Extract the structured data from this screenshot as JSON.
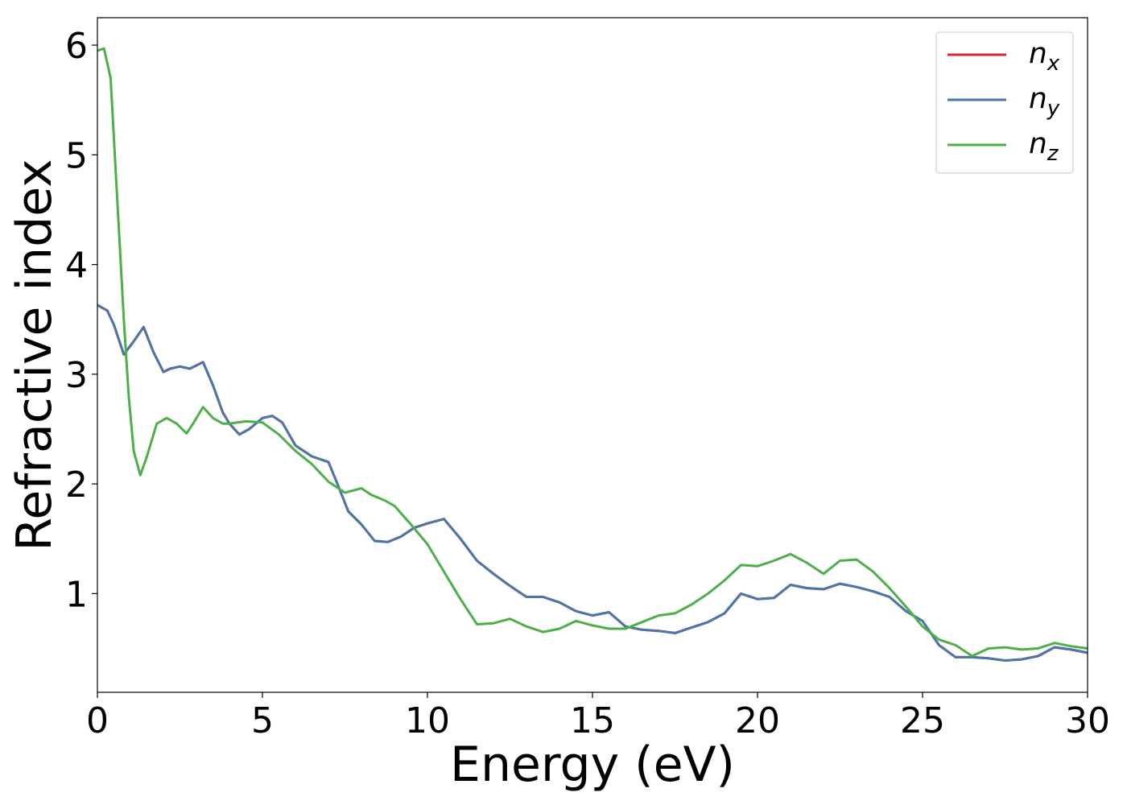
{
  "chart_data": {
    "type": "line",
    "xlabel": "Energy (eV)",
    "ylabel": "Refractive index",
    "xlim": [
      0,
      30
    ],
    "ylim": [
      0.1,
      6.25
    ],
    "xticks": [
      0,
      5,
      10,
      15,
      20,
      25,
      30
    ],
    "yticks": [
      1,
      2,
      3,
      4,
      5,
      6
    ],
    "grid": false,
    "legend_position": "top-right",
    "series": [
      {
        "name": "n",
        "subscript": "x",
        "color": "#d62728",
        "x": [
          0,
          0.3,
          0.5,
          0.8,
          1.1,
          1.4,
          1.7,
          2.0,
          2.2,
          2.5,
          2.8,
          3.2,
          3.5,
          3.8,
          4.0,
          4.3,
          4.6,
          5.0,
          5.3,
          5.6,
          6.0,
          6.5,
          7.0,
          7.3,
          7.6,
          8.0,
          8.4,
          8.8,
          9.2,
          9.6,
          10.0,
          10.5,
          11.0,
          11.5,
          12.0,
          12.5,
          13.0,
          13.5,
          14.0,
          14.5,
          15.0,
          15.5,
          16.0,
          16.5,
          17.0,
          17.5,
          18.0,
          18.5,
          19.0,
          19.5,
          20.0,
          20.5,
          21.0,
          21.5,
          22.0,
          22.5,
          23.0,
          23.5,
          24.0,
          24.5,
          25.0,
          25.5,
          26.0,
          26.5,
          27.0,
          27.5,
          28.0,
          28.5,
          29.0,
          29.5,
          30.0
        ],
        "y": [
          3.63,
          3.58,
          3.45,
          3.18,
          3.3,
          3.43,
          3.2,
          3.02,
          3.05,
          3.07,
          3.05,
          3.11,
          2.9,
          2.65,
          2.55,
          2.45,
          2.5,
          2.6,
          2.62,
          2.56,
          2.35,
          2.25,
          2.2,
          1.98,
          1.75,
          1.63,
          1.48,
          1.47,
          1.52,
          1.6,
          1.64,
          1.68,
          1.5,
          1.3,
          1.18,
          1.07,
          0.97,
          0.97,
          0.92,
          0.84,
          0.8,
          0.83,
          0.7,
          0.67,
          0.66,
          0.64,
          0.69,
          0.74,
          0.82,
          1.0,
          0.95,
          0.96,
          1.08,
          1.05,
          1.04,
          1.09,
          1.06,
          1.02,
          0.97,
          0.84,
          0.75,
          0.53,
          0.42,
          0.42,
          0.41,
          0.39,
          0.4,
          0.43,
          0.51,
          0.49,
          0.46
        ]
      },
      {
        "name": "n",
        "subscript": "y",
        "color": "#4a76aa",
        "x": [
          0,
          0.3,
          0.5,
          0.8,
          1.1,
          1.4,
          1.7,
          2.0,
          2.2,
          2.5,
          2.8,
          3.2,
          3.5,
          3.8,
          4.0,
          4.3,
          4.6,
          5.0,
          5.3,
          5.6,
          6.0,
          6.5,
          7.0,
          7.3,
          7.6,
          8.0,
          8.4,
          8.8,
          9.2,
          9.6,
          10.0,
          10.5,
          11.0,
          11.5,
          12.0,
          12.5,
          13.0,
          13.5,
          14.0,
          14.5,
          15.0,
          15.5,
          16.0,
          16.5,
          17.0,
          17.5,
          18.0,
          18.5,
          19.0,
          19.5,
          20.0,
          20.5,
          21.0,
          21.5,
          22.0,
          22.5,
          23.0,
          23.5,
          24.0,
          24.5,
          25.0,
          25.5,
          26.0,
          26.5,
          27.0,
          27.5,
          28.0,
          28.5,
          29.0,
          29.5,
          30.0
        ],
        "y": [
          3.63,
          3.58,
          3.45,
          3.18,
          3.3,
          3.43,
          3.2,
          3.02,
          3.05,
          3.07,
          3.05,
          3.11,
          2.9,
          2.65,
          2.55,
          2.45,
          2.5,
          2.6,
          2.62,
          2.56,
          2.35,
          2.25,
          2.2,
          1.98,
          1.75,
          1.63,
          1.48,
          1.47,
          1.52,
          1.6,
          1.64,
          1.68,
          1.5,
          1.3,
          1.18,
          1.07,
          0.97,
          0.97,
          0.92,
          0.84,
          0.8,
          0.83,
          0.7,
          0.67,
          0.66,
          0.64,
          0.69,
          0.74,
          0.82,
          1.0,
          0.95,
          0.96,
          1.08,
          1.05,
          1.04,
          1.09,
          1.06,
          1.02,
          0.97,
          0.84,
          0.75,
          0.53,
          0.42,
          0.42,
          0.41,
          0.39,
          0.4,
          0.43,
          0.51,
          0.49,
          0.46
        ]
      },
      {
        "name": "n",
        "subscript": "z",
        "color": "#4daf4a",
        "x": [
          0,
          0.2,
          0.4,
          0.6,
          0.8,
          0.95,
          1.1,
          1.3,
          1.5,
          1.8,
          2.1,
          2.4,
          2.7,
          2.9,
          3.2,
          3.5,
          3.8,
          4.0,
          4.5,
          5.0,
          5.5,
          6.0,
          6.5,
          7.0,
          7.5,
          8.0,
          8.3,
          8.7,
          9.0,
          9.5,
          10.0,
          10.5,
          11.0,
          11.5,
          12.0,
          12.5,
          13.0,
          13.5,
          14.0,
          14.5,
          15.0,
          15.5,
          16.0,
          16.5,
          17.0,
          17.5,
          18.0,
          18.5,
          19.0,
          19.5,
          20.0,
          20.5,
          21.0,
          21.5,
          22.0,
          22.5,
          23.0,
          23.5,
          24.0,
          24.5,
          25.0,
          25.5,
          26.0,
          26.5,
          27.0,
          27.5,
          28.0,
          28.5,
          29.0,
          29.5,
          30.0
        ],
        "y": [
          5.95,
          5.97,
          5.7,
          4.6,
          3.5,
          2.8,
          2.3,
          2.08,
          2.25,
          2.55,
          2.6,
          2.55,
          2.46,
          2.55,
          2.7,
          2.6,
          2.55,
          2.55,
          2.57,
          2.56,
          2.45,
          2.3,
          2.18,
          2.02,
          1.92,
          1.96,
          1.9,
          1.85,
          1.8,
          1.63,
          1.45,
          1.2,
          0.95,
          0.72,
          0.73,
          0.77,
          0.7,
          0.65,
          0.68,
          0.75,
          0.71,
          0.68,
          0.68,
          0.74,
          0.8,
          0.82,
          0.9,
          1.0,
          1.12,
          1.26,
          1.25,
          1.3,
          1.36,
          1.28,
          1.18,
          1.3,
          1.31,
          1.2,
          1.05,
          0.88,
          0.7,
          0.58,
          0.53,
          0.43,
          0.5,
          0.51,
          0.49,
          0.5,
          0.55,
          0.52,
          0.5
        ]
      }
    ]
  }
}
